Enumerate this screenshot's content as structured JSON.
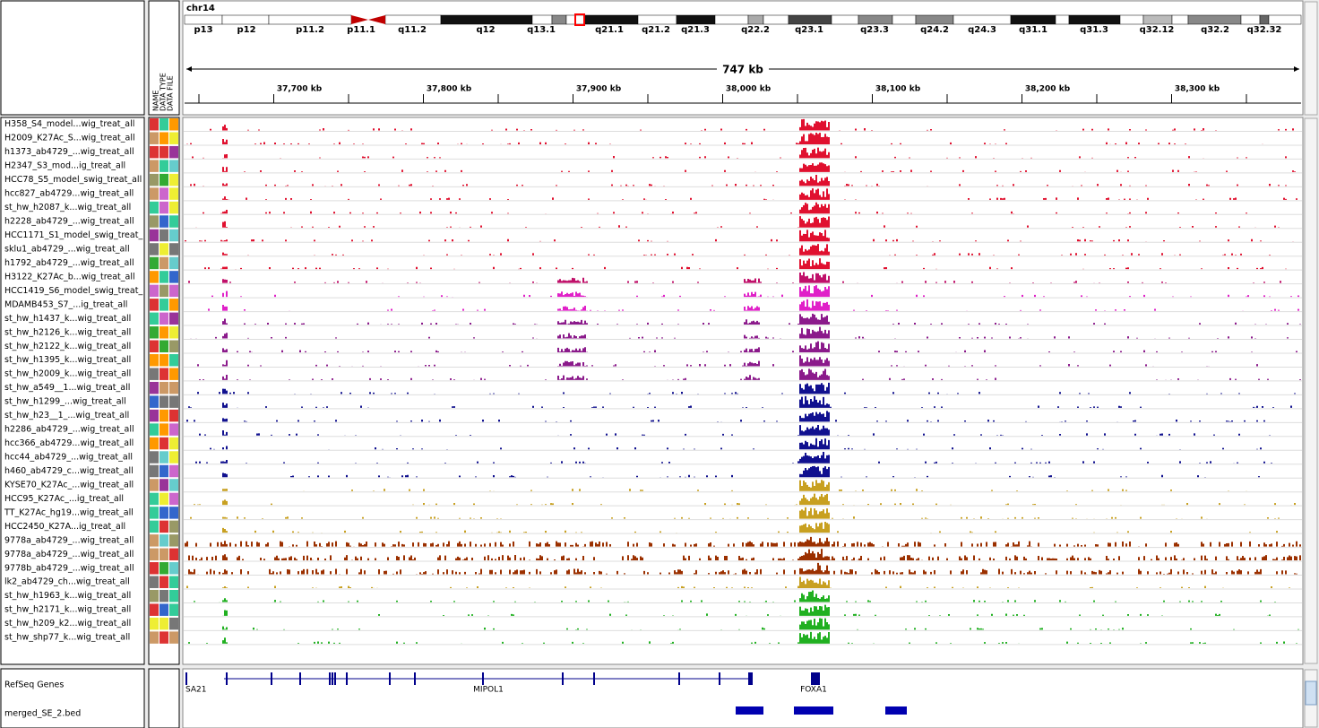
{
  "header": {
    "chromosome": "chr14",
    "span": "747 kb",
    "attributes": [
      "NAME",
      "DATA TYPE",
      "DATA FILE"
    ],
    "bands": [
      "p13",
      "p12",
      "p11.2",
      "p11.1",
      "q11.2",
      "q12",
      "q13.1",
      "q21.1",
      "q21.2",
      "q21.3",
      "q22.2",
      "q23.1",
      "q23.3",
      "q24.2",
      "q24.3",
      "q31.1",
      "q31.3",
      "q32.12",
      "q32.2",
      "q32.32"
    ],
    "ruler": [
      "37,700 kb",
      "37,800 kb",
      "37,900 kb",
      "38,000 kb",
      "38,100 kb",
      "38,200 kb",
      "38,300 kb"
    ]
  },
  "tracks": [
    {
      "name": "H358_S4_model...wig_treat_all",
      "color": "#e0102f"
    },
    {
      "name": "H2009_K27Ac_S...wig_treat_all",
      "color": "#e0102f"
    },
    {
      "name": "h1373_ab4729_...wig_treat_all",
      "color": "#e0102f"
    },
    {
      "name": "H2347_S3_mod...ig_treat_all",
      "color": "#e0102f"
    },
    {
      "name": "HCC78_S5_model_swig_treat_all",
      "color": "#e0102f"
    },
    {
      "name": "hcc827_ab4729...wig_treat_all",
      "color": "#e0102f"
    },
    {
      "name": "st_hw_h2087_k...wig_treat_all",
      "color": "#e0102f"
    },
    {
      "name": "h2228_ab4729_...wig_treat_all",
      "color": "#e0102f"
    },
    {
      "name": "HCC1171_S1_model_swig_treat_",
      "color": "#e0102f"
    },
    {
      "name": "sklu1_ab4729_...wig_treat_all",
      "color": "#e0102f"
    },
    {
      "name": "h1792_ab4729_...wig_treat_all",
      "color": "#e0102f"
    },
    {
      "name": "H3122_K27Ac_b...wig_treat_all",
      "color": "#c0106a"
    },
    {
      "name": "HCC1419_S6_model_swig_treat_",
      "color": "#e020c8"
    },
    {
      "name": "MDAMB453_S7_...ig_treat_all",
      "color": "#e020c8"
    },
    {
      "name": "st_hw_h1437_k...wig_treat_all",
      "color": "#8b1a8b"
    },
    {
      "name": "st_hw_h2126_k...wig_treat_all",
      "color": "#8b1a8b"
    },
    {
      "name": "st_hw_h2122_k...wig_treat_all",
      "color": "#8b1a8b"
    },
    {
      "name": "st_hw_h1395_k...wig_treat_all",
      "color": "#8b1a8b"
    },
    {
      "name": "st_hw_h2009_k...wig_treat_all",
      "color": "#8b1a8b"
    },
    {
      "name": "st_hw_a549__1...wig_treat_all",
      "color": "#10108f"
    },
    {
      "name": "st_hw_h1299_...wig_treat_all",
      "color": "#10108f"
    },
    {
      "name": "st_hw_h23__1_...wig_treat_all",
      "color": "#10108f"
    },
    {
      "name": "h2286_ab4729_...wig_treat_all",
      "color": "#10108f"
    },
    {
      "name": "hcc366_ab4729...wig_treat_all",
      "color": "#10108f"
    },
    {
      "name": "hcc44_ab4729_...wig_treat_all",
      "color": "#10108f"
    },
    {
      "name": "h460_ab4729_c...wig_treat_all",
      "color": "#10108f"
    },
    {
      "name": "KYSE70_K27Ac_...wig_treat_all",
      "color": "#c8a020"
    },
    {
      "name": "HCC95_K27Ac_...ig_treat_all",
      "color": "#c8a020"
    },
    {
      "name": "TT_K27Ac_hg19...wig_treat_all",
      "color": "#c8a020"
    },
    {
      "name": "HCC2450_K27A...ig_treat_all",
      "color": "#c8a020"
    },
    {
      "name": "9778a_ab4729_...wig_treat_all",
      "color": "#9b3000"
    },
    {
      "name": "9778a_ab4729_...wig_treat_all",
      "color": "#9b3000"
    },
    {
      "name": "9778b_ab4729_...wig_treat_all",
      "color": "#9b3000"
    },
    {
      "name": "lk2_ab4729_ch...wig_treat_all",
      "color": "#c8a020"
    },
    {
      "name": "st_hw_h1963_k...wig_treat_all",
      "color": "#20b020"
    },
    {
      "name": "st_hw_h2171_k...wig_treat_all",
      "color": "#20b020"
    },
    {
      "name": "st_hw_h209_k2...wig_treat_all",
      "color": "#20b020"
    },
    {
      "name": "st_hw_shp77_k...wig_treat_all",
      "color": "#20b020"
    }
  ],
  "feature_tracks": [
    "RefSeq Genes",
    "merged_SE_2.bed"
  ],
  "genes": [
    "SA21",
    "MIPOL1",
    "FOXA1"
  ]
}
